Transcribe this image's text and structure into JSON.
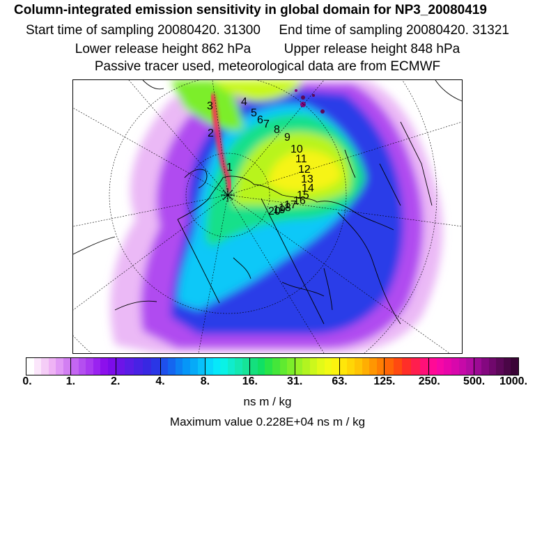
{
  "header": {
    "title": "Column-integrated emission sensitivity in global domain for NP3_20080419",
    "start_sampling": "Start time of sampling 20080420. 31300",
    "end_sampling": "End time of sampling 20080420. 31321",
    "lower_release": "Lower release height  862 hPa",
    "upper_release": "Upper release height  848 hPa",
    "tracer_note": "Passive tracer used, meteorological data are from ECMWF"
  },
  "map": {
    "trajectory_labels": [
      "1",
      "2",
      "3",
      "4",
      "5",
      "6",
      "7",
      "8",
      "9",
      "10",
      "11",
      "12",
      "13",
      "14",
      "15",
      "16",
      "17",
      "18",
      "19",
      "20"
    ]
  },
  "colorbar": {
    "colors": [
      "#ffffff",
      "#fbe6fb",
      "#f5cdf7",
      "#efb3f5",
      "#e199f5",
      "#d27ff2",
      "#c466f2",
      "#b44ff0",
      "#a93af0",
      "#9a23f0",
      "#8c10ec",
      "#7c0cea",
      "#6c14e8",
      "#5a1ce6",
      "#4822e4",
      "#3828e2",
      "#2a36e6",
      "#1e50ec",
      "#1466f0",
      "#0c80f4",
      "#0696f8",
      "#06aaf8",
      "#08c0fa",
      "#08d6fc",
      "#06e8fa",
      "#0af2e6",
      "#10eccc",
      "#14e8b2",
      "#16e498",
      "#14e07e",
      "#10e064",
      "#28e448",
      "#44e63a",
      "#60ea30",
      "#7cee2a",
      "#98f226",
      "#b2f420",
      "#ccf81c",
      "#e2fa18",
      "#f2fa14",
      "#fcf40e",
      "#ffe60a",
      "#ffd606",
      "#ffc404",
      "#ffae02",
      "#ff9602",
      "#ff7e02",
      "#ff6606",
      "#ff4a10",
      "#ff2e28",
      "#ff1e4e",
      "#ff1078",
      "#ff0a96",
      "#f608a6",
      "#e806aa",
      "#d808ac",
      "#c60aa8",
      "#b20ca2",
      "#9c0a94",
      "#840880",
      "#70086c",
      "#5c0858",
      "#4a0646",
      "#3a0436"
    ],
    "tick_labels": [
      "0.",
      "1.",
      "2.",
      "4.",
      "8.",
      "16.",
      "31.",
      "63.",
      "125.",
      "250.",
      "500.",
      "1000."
    ],
    "units": "ns m / kg",
    "max_value": "Maximum value  0.228E+04 ns m / kg"
  }
}
